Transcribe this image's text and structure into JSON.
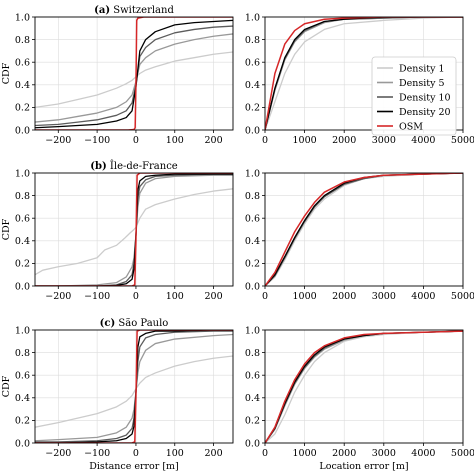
{
  "figure": {
    "ylabel": "CDF",
    "xlabel_left": "Distance error [m]",
    "xlabel_right": "Location error [m]",
    "series_colors": {
      "Density 1": "#cccccc",
      "Density 5": "#999999",
      "Density 10": "#5c5c5c",
      "Density 20": "#000000",
      "OSM": "#d62728"
    }
  },
  "legend": [
    "Density 1",
    "Density 5",
    "Density 10",
    "Density 20",
    "OSM"
  ],
  "chart_data": [
    {
      "type": "line",
      "panel_title": "(a) Switzerland",
      "xlim": [
        -260,
        250
      ],
      "ylim": [
        0,
        1
      ],
      "xticks": [
        -200,
        -100,
        0,
        100,
        200
      ],
      "yticks": [
        0.0,
        0.2,
        0.4,
        0.6,
        0.8,
        1.0
      ],
      "xlabel": "",
      "ylabel": "CDF",
      "series": [
        {
          "name": "Density 1",
          "x": [
            -260,
            -200,
            -150,
            -100,
            -50,
            -25,
            -10,
            0,
            10,
            25,
            50,
            100,
            150,
            200,
            250
          ],
          "y": [
            0.2,
            0.23,
            0.27,
            0.31,
            0.37,
            0.41,
            0.44,
            0.47,
            0.5,
            0.53,
            0.56,
            0.61,
            0.64,
            0.67,
            0.69
          ]
        },
        {
          "name": "Density 5",
          "x": [
            -260,
            -200,
            -150,
            -100,
            -50,
            -25,
            -10,
            0,
            10,
            25,
            50,
            100,
            150,
            200,
            250
          ],
          "y": [
            0.07,
            0.09,
            0.12,
            0.15,
            0.2,
            0.25,
            0.31,
            0.43,
            0.58,
            0.64,
            0.7,
            0.76,
            0.8,
            0.83,
            0.85
          ]
        },
        {
          "name": "Density 10",
          "x": [
            -260,
            -200,
            -150,
            -100,
            -50,
            -25,
            -10,
            0,
            10,
            25,
            50,
            100,
            150,
            200,
            250
          ],
          "y": [
            0.04,
            0.05,
            0.07,
            0.09,
            0.13,
            0.17,
            0.24,
            0.4,
            0.65,
            0.73,
            0.8,
            0.86,
            0.89,
            0.91,
            0.92
          ]
        },
        {
          "name": "Density 20",
          "x": [
            -260,
            -200,
            -150,
            -100,
            -50,
            -25,
            -10,
            0,
            10,
            25,
            50,
            100,
            150,
            200,
            250
          ],
          "y": [
            0.02,
            0.03,
            0.04,
            0.05,
            0.08,
            0.11,
            0.17,
            0.38,
            0.7,
            0.8,
            0.87,
            0.93,
            0.95,
            0.96,
            0.97
          ]
        },
        {
          "name": "OSM",
          "x": [
            -260,
            -200,
            -100,
            -20,
            -5,
            -2,
            0,
            2,
            5,
            20,
            100,
            200,
            250
          ],
          "y": [
            0.0,
            0.0,
            0.0,
            0.0,
            0.005,
            0.02,
            0.4,
            0.97,
            0.99,
            1.0,
            1.0,
            1.0,
            1.0
          ]
        }
      ]
    },
    {
      "type": "line",
      "panel_title": "",
      "xlim": [
        0,
        5000
      ],
      "ylim": [
        0,
        1
      ],
      "xticks": [
        0,
        1000,
        2000,
        3000,
        4000,
        5000
      ],
      "yticks": [
        0.0,
        0.2,
        0.4,
        0.6,
        0.8,
        1.0
      ],
      "xlabel": "",
      "ylabel": "",
      "legend": "center-right",
      "series": [
        {
          "name": "Density 1",
          "x": [
            0,
            250,
            500,
            750,
            1000,
            1500,
            2000,
            3000,
            4000,
            5000
          ],
          "y": [
            0.0,
            0.25,
            0.5,
            0.67,
            0.78,
            0.89,
            0.94,
            0.97,
            0.99,
            1.0
          ]
        },
        {
          "name": "Density 5",
          "x": [
            0,
            250,
            500,
            750,
            1000,
            1500,
            2000,
            3000,
            4000,
            5000
          ],
          "y": [
            0.0,
            0.35,
            0.62,
            0.78,
            0.87,
            0.95,
            0.98,
            0.99,
            1.0,
            1.0
          ]
        },
        {
          "name": "Density 10",
          "x": [
            0,
            250,
            500,
            750,
            1000,
            1500,
            2000,
            3000,
            4000,
            5000
          ],
          "y": [
            0.0,
            0.36,
            0.63,
            0.79,
            0.88,
            0.96,
            0.98,
            0.99,
            1.0,
            1.0
          ]
        },
        {
          "name": "Density 20",
          "x": [
            0,
            250,
            500,
            750,
            1000,
            1500,
            2000,
            3000,
            4000,
            5000
          ],
          "y": [
            0.0,
            0.37,
            0.64,
            0.8,
            0.89,
            0.96,
            0.98,
            1.0,
            1.0,
            1.0
          ]
        },
        {
          "name": "OSM",
          "x": [
            0,
            250,
            500,
            750,
            1000,
            1500,
            2000,
            3000,
            4000,
            5000
          ],
          "y": [
            0.0,
            0.5,
            0.76,
            0.88,
            0.94,
            0.98,
            0.99,
            1.0,
            1.0,
            1.0
          ]
        }
      ]
    },
    {
      "type": "line",
      "panel_title": "(b) Île-de-France",
      "xlim": [
        -260,
        250
      ],
      "ylim": [
        0,
        1
      ],
      "xticks": [
        -200,
        -100,
        0,
        100,
        200
      ],
      "yticks": [
        0.0,
        0.2,
        0.4,
        0.6,
        0.8,
        1.0
      ],
      "xlabel": "",
      "ylabel": "CDF",
      "series": [
        {
          "name": "Density 1",
          "x": [
            -260,
            -240,
            -200,
            -150,
            -100,
            -80,
            -50,
            -30,
            -15,
            -5,
            0,
            10,
            25,
            50,
            100,
            150,
            200,
            250
          ],
          "y": [
            0.1,
            0.14,
            0.17,
            0.2,
            0.25,
            0.32,
            0.36,
            0.42,
            0.47,
            0.5,
            0.52,
            0.6,
            0.68,
            0.72,
            0.77,
            0.81,
            0.84,
            0.86
          ]
        },
        {
          "name": "Density 5",
          "x": [
            -260,
            -200,
            -100,
            -50,
            -25,
            -10,
            -5,
            0,
            5,
            10,
            25,
            50,
            100,
            200,
            250
          ],
          "y": [
            0.0,
            0.0,
            0.01,
            0.03,
            0.08,
            0.17,
            0.25,
            0.45,
            0.7,
            0.82,
            0.91,
            0.95,
            0.97,
            0.98,
            0.98
          ]
        },
        {
          "name": "Density 10",
          "x": [
            -260,
            -200,
            -100,
            -50,
            -25,
            -10,
            -5,
            0,
            5,
            10,
            25,
            50,
            100,
            200,
            250
          ],
          "y": [
            0.0,
            0.0,
            0.0,
            0.01,
            0.04,
            0.1,
            0.2,
            0.45,
            0.78,
            0.88,
            0.94,
            0.97,
            0.98,
            0.99,
            0.99
          ]
        },
        {
          "name": "Density 20",
          "x": [
            -260,
            -200,
            -100,
            -50,
            -25,
            -10,
            -5,
            0,
            5,
            10,
            25,
            50,
            100,
            200,
            250
          ],
          "y": [
            0.0,
            0.0,
            0.0,
            0.005,
            0.02,
            0.06,
            0.15,
            0.45,
            0.85,
            0.93,
            0.97,
            0.98,
            0.99,
            0.99,
            0.99
          ]
        },
        {
          "name": "OSM",
          "x": [
            -260,
            -100,
            -10,
            -3,
            0,
            3,
            10,
            100,
            250
          ],
          "y": [
            0.0,
            0.0,
            0.0,
            0.01,
            0.4,
            0.98,
            1.0,
            1.0,
            1.0
          ]
        }
      ]
    },
    {
      "type": "line",
      "panel_title": "",
      "xlim": [
        0,
        5000
      ],
      "ylim": [
        0,
        1
      ],
      "xticks": [
        0,
        1000,
        2000,
        3000,
        4000,
        5000
      ],
      "yticks": [
        0.0,
        0.2,
        0.4,
        0.6,
        0.8,
        1.0
      ],
      "xlabel": "",
      "ylabel": "",
      "series": [
        {
          "name": "Density 1",
          "x": [
            0,
            250,
            500,
            750,
            1000,
            1250,
            1500,
            2000,
            2500,
            3000,
            4000,
            5000
          ],
          "y": [
            0.0,
            0.08,
            0.23,
            0.4,
            0.55,
            0.68,
            0.77,
            0.89,
            0.95,
            0.97,
            0.99,
            1.0
          ]
        },
        {
          "name": "Density 5",
          "x": [
            0,
            250,
            500,
            750,
            1000,
            1250,
            1500,
            2000,
            2500,
            3000,
            4000,
            5000
          ],
          "y": [
            0.0,
            0.09,
            0.25,
            0.42,
            0.57,
            0.7,
            0.79,
            0.9,
            0.95,
            0.98,
            0.99,
            1.0
          ]
        },
        {
          "name": "Density 10",
          "x": [
            0,
            250,
            500,
            750,
            1000,
            1250,
            1500,
            2000,
            2500,
            3000,
            4000,
            5000
          ],
          "y": [
            0.0,
            0.09,
            0.25,
            0.42,
            0.57,
            0.7,
            0.79,
            0.9,
            0.95,
            0.98,
            0.99,
            1.0
          ]
        },
        {
          "name": "Density 20",
          "x": [
            0,
            250,
            500,
            750,
            1000,
            1250,
            1500,
            2000,
            2500,
            3000,
            4000,
            5000
          ],
          "y": [
            0.0,
            0.1,
            0.26,
            0.43,
            0.58,
            0.71,
            0.8,
            0.91,
            0.96,
            0.98,
            0.99,
            1.0
          ]
        },
        {
          "name": "OSM",
          "x": [
            0,
            250,
            500,
            750,
            1000,
            1250,
            1500,
            2000,
            2500,
            3000,
            4000,
            5000
          ],
          "y": [
            0.0,
            0.12,
            0.3,
            0.48,
            0.62,
            0.74,
            0.83,
            0.92,
            0.96,
            0.98,
            0.99,
            1.0
          ]
        }
      ]
    },
    {
      "type": "line",
      "panel_title": "(c) São Paulo",
      "xlim": [
        -260,
        250
      ],
      "ylim": [
        0,
        1
      ],
      "xticks": [
        -200,
        -100,
        0,
        100,
        200
      ],
      "yticks": [
        0.0,
        0.2,
        0.4,
        0.6,
        0.8,
        1.0
      ],
      "xlabel": "Distance error [m]",
      "ylabel": "CDF",
      "series": [
        {
          "name": "Density 1",
          "x": [
            -260,
            -200,
            -150,
            -100,
            -50,
            -25,
            -10,
            0,
            10,
            25,
            50,
            100,
            150,
            200,
            250
          ],
          "y": [
            0.14,
            0.18,
            0.22,
            0.26,
            0.32,
            0.37,
            0.42,
            0.48,
            0.53,
            0.58,
            0.62,
            0.68,
            0.72,
            0.75,
            0.77
          ]
        },
        {
          "name": "Density 5",
          "x": [
            -260,
            -200,
            -100,
            -50,
            -25,
            -10,
            -5,
            0,
            5,
            10,
            25,
            50,
            100,
            200,
            250
          ],
          "y": [
            0.02,
            0.03,
            0.05,
            0.09,
            0.14,
            0.22,
            0.3,
            0.45,
            0.62,
            0.72,
            0.82,
            0.88,
            0.92,
            0.95,
            0.96
          ]
        },
        {
          "name": "Density 10",
          "x": [
            -260,
            -200,
            -100,
            -50,
            -25,
            -10,
            -5,
            0,
            5,
            10,
            25,
            50,
            100,
            200,
            250
          ],
          "y": [
            0.01,
            0.01,
            0.02,
            0.04,
            0.07,
            0.13,
            0.22,
            0.45,
            0.72,
            0.85,
            0.93,
            0.96,
            0.98,
            0.99,
            0.99
          ]
        },
        {
          "name": "Density 20",
          "x": [
            -260,
            -200,
            -100,
            -50,
            -25,
            -10,
            -5,
            0,
            5,
            10,
            25,
            50,
            100,
            200,
            250
          ],
          "y": [
            0.0,
            0.0,
            0.01,
            0.02,
            0.04,
            0.08,
            0.15,
            0.45,
            0.85,
            0.94,
            0.97,
            0.99,
            0.99,
            1.0,
            1.0
          ]
        },
        {
          "name": "OSM",
          "x": [
            -260,
            -100,
            -10,
            -3,
            0,
            3,
            10,
            100,
            250
          ],
          "y": [
            0.0,
            0.0,
            0.0,
            0.01,
            0.4,
            0.99,
            1.0,
            1.0,
            1.0
          ]
        }
      ]
    },
    {
      "type": "line",
      "panel_title": "",
      "xlim": [
        0,
        5000
      ],
      "ylim": [
        0,
        1
      ],
      "xticks": [
        0,
        1000,
        2000,
        3000,
        4000,
        5000
      ],
      "yticks": [
        0.0,
        0.2,
        0.4,
        0.6,
        0.8,
        1.0
      ],
      "xlabel": "Location error [m]",
      "ylabel": "",
      "series": [
        {
          "name": "Density 1",
          "x": [
            0,
            250,
            500,
            750,
            1000,
            1250,
            1500,
            2000,
            2500,
            3000,
            4000,
            5000
          ],
          "y": [
            0.0,
            0.08,
            0.25,
            0.45,
            0.6,
            0.72,
            0.8,
            0.9,
            0.94,
            0.96,
            0.98,
            0.99
          ]
        },
        {
          "name": "Density 5",
          "x": [
            0,
            250,
            500,
            750,
            1000,
            1250,
            1500,
            2000,
            2500,
            3000,
            4000,
            5000
          ],
          "y": [
            0.0,
            0.12,
            0.33,
            0.52,
            0.66,
            0.76,
            0.83,
            0.91,
            0.95,
            0.97,
            0.98,
            0.99
          ]
        },
        {
          "name": "Density 10",
          "x": [
            0,
            250,
            500,
            750,
            1000,
            1250,
            1500,
            2000,
            2500,
            3000,
            4000,
            5000
          ],
          "y": [
            0.0,
            0.13,
            0.34,
            0.53,
            0.67,
            0.77,
            0.84,
            0.92,
            0.95,
            0.97,
            0.98,
            0.99
          ]
        },
        {
          "name": "Density 20",
          "x": [
            0,
            250,
            500,
            750,
            1000,
            1250,
            1500,
            2000,
            2500,
            3000,
            4000,
            5000
          ],
          "y": [
            0.0,
            0.13,
            0.35,
            0.54,
            0.68,
            0.78,
            0.85,
            0.92,
            0.95,
            0.97,
            0.98,
            0.99
          ]
        },
        {
          "name": "OSM",
          "x": [
            0,
            250,
            500,
            750,
            1000,
            1250,
            1500,
            2000,
            2500,
            3000,
            4000,
            5000
          ],
          "y": [
            0.0,
            0.14,
            0.37,
            0.56,
            0.7,
            0.8,
            0.86,
            0.93,
            0.96,
            0.97,
            0.98,
            0.99
          ]
        }
      ]
    }
  ]
}
